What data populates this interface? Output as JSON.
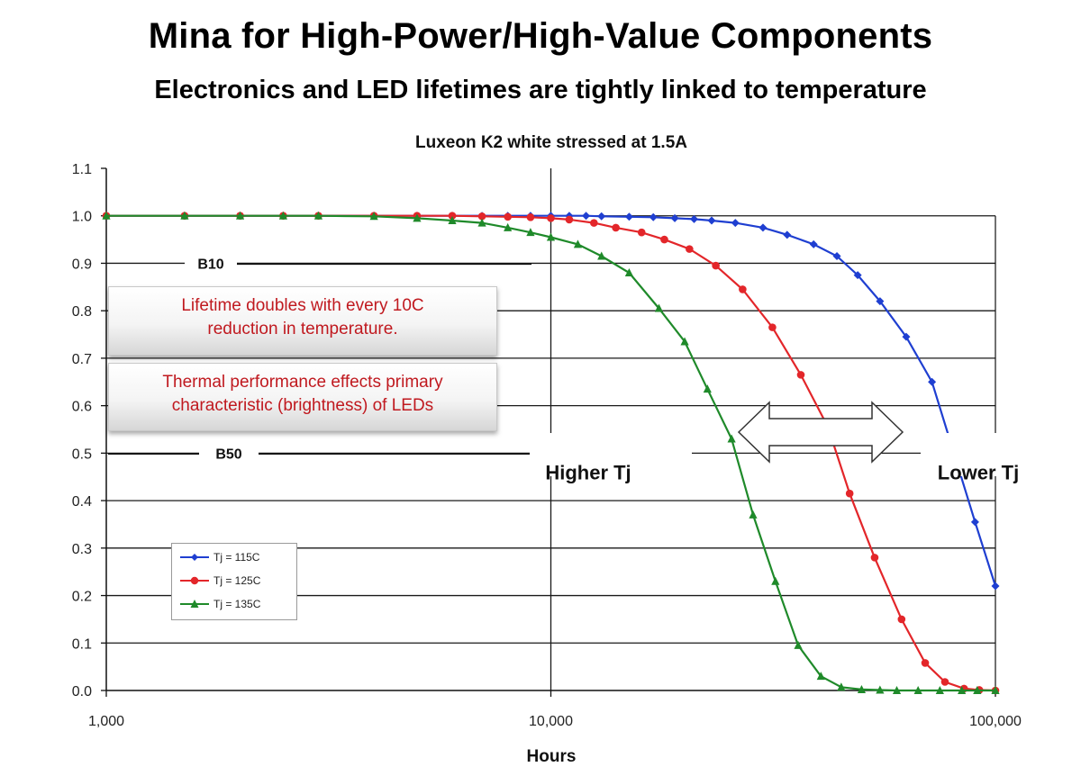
{
  "header": {
    "title": "Mina for High-Power/High-Value Components",
    "subtitle": "Electronics and LED lifetimes are tightly linked to temperature"
  },
  "callouts": {
    "lifetime": [
      "Lifetime doubles with every 10C",
      "reduction in temperature."
    ],
    "thermal": [
      "Thermal performance effects primary",
      "characteristic (brightness) of LEDs"
    ]
  },
  "legend": {
    "items": [
      "Tj = 115C",
      "Tj = 125C",
      "Tj = 135C"
    ]
  },
  "chart_data": {
    "type": "line",
    "title": "Luxeon K2 white stressed at 1.5A",
    "xlabel": "Hours",
    "ylabel": "",
    "xscale": "log",
    "xlim": [
      1000,
      100000
    ],
    "ylim": [
      0,
      1.1
    ],
    "x_tick_labels": [
      "1,000",
      "10,000",
      "100,000"
    ],
    "y_tick_labels": [
      "0.0",
      "0.1",
      "0.2",
      "0.3",
      "0.4",
      "0.5",
      "0.6",
      "0.7",
      "0.8",
      "0.9",
      "1.0",
      "1.1"
    ],
    "grid": "horizontal",
    "legend_position": "lower-left",
    "series": [
      {
        "name": "Tj = 115C",
        "color": "#1f3fd1",
        "marker": "diamond",
        "points": [
          [
            1000,
            1.0
          ],
          [
            1500,
            1.0
          ],
          [
            2000,
            1.0
          ],
          [
            2500,
            1.0
          ],
          [
            3000,
            1.0
          ],
          [
            4000,
            1.0
          ],
          [
            5000,
            1.0
          ],
          [
            6000,
            1.0
          ],
          [
            7000,
            1.0
          ],
          [
            8000,
            1.0
          ],
          [
            9000,
            1.0
          ],
          [
            10000,
            1.0
          ],
          [
            11000,
            1.0
          ],
          [
            12000,
            1.0
          ],
          [
            13000,
            0.999
          ],
          [
            15000,
            0.998
          ],
          [
            17000,
            0.997
          ],
          [
            19000,
            0.995
          ],
          [
            21000,
            0.993
          ],
          [
            23000,
            0.99
          ],
          [
            26000,
            0.985
          ],
          [
            30000,
            0.975
          ],
          [
            34000,
            0.96
          ],
          [
            39000,
            0.94
          ],
          [
            44000,
            0.915
          ],
          [
            49000,
            0.875
          ],
          [
            55000,
            0.82
          ],
          [
            63000,
            0.745
          ],
          [
            72000,
            0.65
          ],
          [
            90000,
            0.355
          ],
          [
            100000,
            0.22
          ]
        ]
      },
      {
        "name": "Tj = 125C",
        "color": "#e3262a",
        "marker": "circle",
        "points": [
          [
            1000,
            1.0
          ],
          [
            1500,
            1.0
          ],
          [
            2000,
            1.0
          ],
          [
            2500,
            1.0
          ],
          [
            3000,
            1.0
          ],
          [
            4000,
            1.0
          ],
          [
            5000,
            1.0
          ],
          [
            6000,
            1.0
          ],
          [
            7000,
            0.999
          ],
          [
            8000,
            0.998
          ],
          [
            9000,
            0.997
          ],
          [
            10000,
            0.995
          ],
          [
            11000,
            0.992
          ],
          [
            12500,
            0.985
          ],
          [
            14000,
            0.975
          ],
          [
            16000,
            0.965
          ],
          [
            18000,
            0.95
          ],
          [
            20500,
            0.93
          ],
          [
            23500,
            0.895
          ],
          [
            27000,
            0.845
          ],
          [
            31500,
            0.765
          ],
          [
            36500,
            0.665
          ],
          [
            42000,
            0.555
          ],
          [
            47000,
            0.415
          ],
          [
            53500,
            0.28
          ],
          [
            61500,
            0.15
          ],
          [
            69500,
            0.058
          ],
          [
            77000,
            0.018
          ],
          [
            85000,
            0.004
          ],
          [
            92000,
            0.001
          ],
          [
            100000,
            0.0
          ]
        ]
      },
      {
        "name": "Tj = 135C",
        "color": "#1f8a2a",
        "marker": "triangle",
        "points": [
          [
            1000,
            1.0
          ],
          [
            1500,
            1.0
          ],
          [
            2000,
            1.0
          ],
          [
            2500,
            1.0
          ],
          [
            3000,
            1.0
          ],
          [
            4000,
            0.999
          ],
          [
            5000,
            0.995
          ],
          [
            6000,
            0.99
          ],
          [
            7000,
            0.985
          ],
          [
            8000,
            0.975
          ],
          [
            9000,
            0.965
          ],
          [
            10000,
            0.955
          ],
          [
            11500,
            0.94
          ],
          [
            13000,
            0.915
          ],
          [
            15000,
            0.88
          ],
          [
            17500,
            0.805
          ],
          [
            20000,
            0.735
          ],
          [
            22500,
            0.635
          ],
          [
            25500,
            0.53
          ],
          [
            28500,
            0.37
          ],
          [
            32000,
            0.23
          ],
          [
            36000,
            0.095
          ],
          [
            40500,
            0.03
          ],
          [
            45000,
            0.007
          ],
          [
            50000,
            0.002
          ],
          [
            55000,
            0.001
          ],
          [
            60000,
            0.0
          ],
          [
            67000,
            0.0
          ],
          [
            75000,
            0.0
          ],
          [
            84000,
            0.0
          ],
          [
            91000,
            0.0
          ],
          [
            100000,
            0.0
          ]
        ]
      }
    ],
    "annotations": [
      "B10",
      "B50",
      "Higher Tj",
      "Lower Tj"
    ]
  },
  "colors": {
    "callout_text": "#c0191f",
    "grid": "#222222"
  }
}
